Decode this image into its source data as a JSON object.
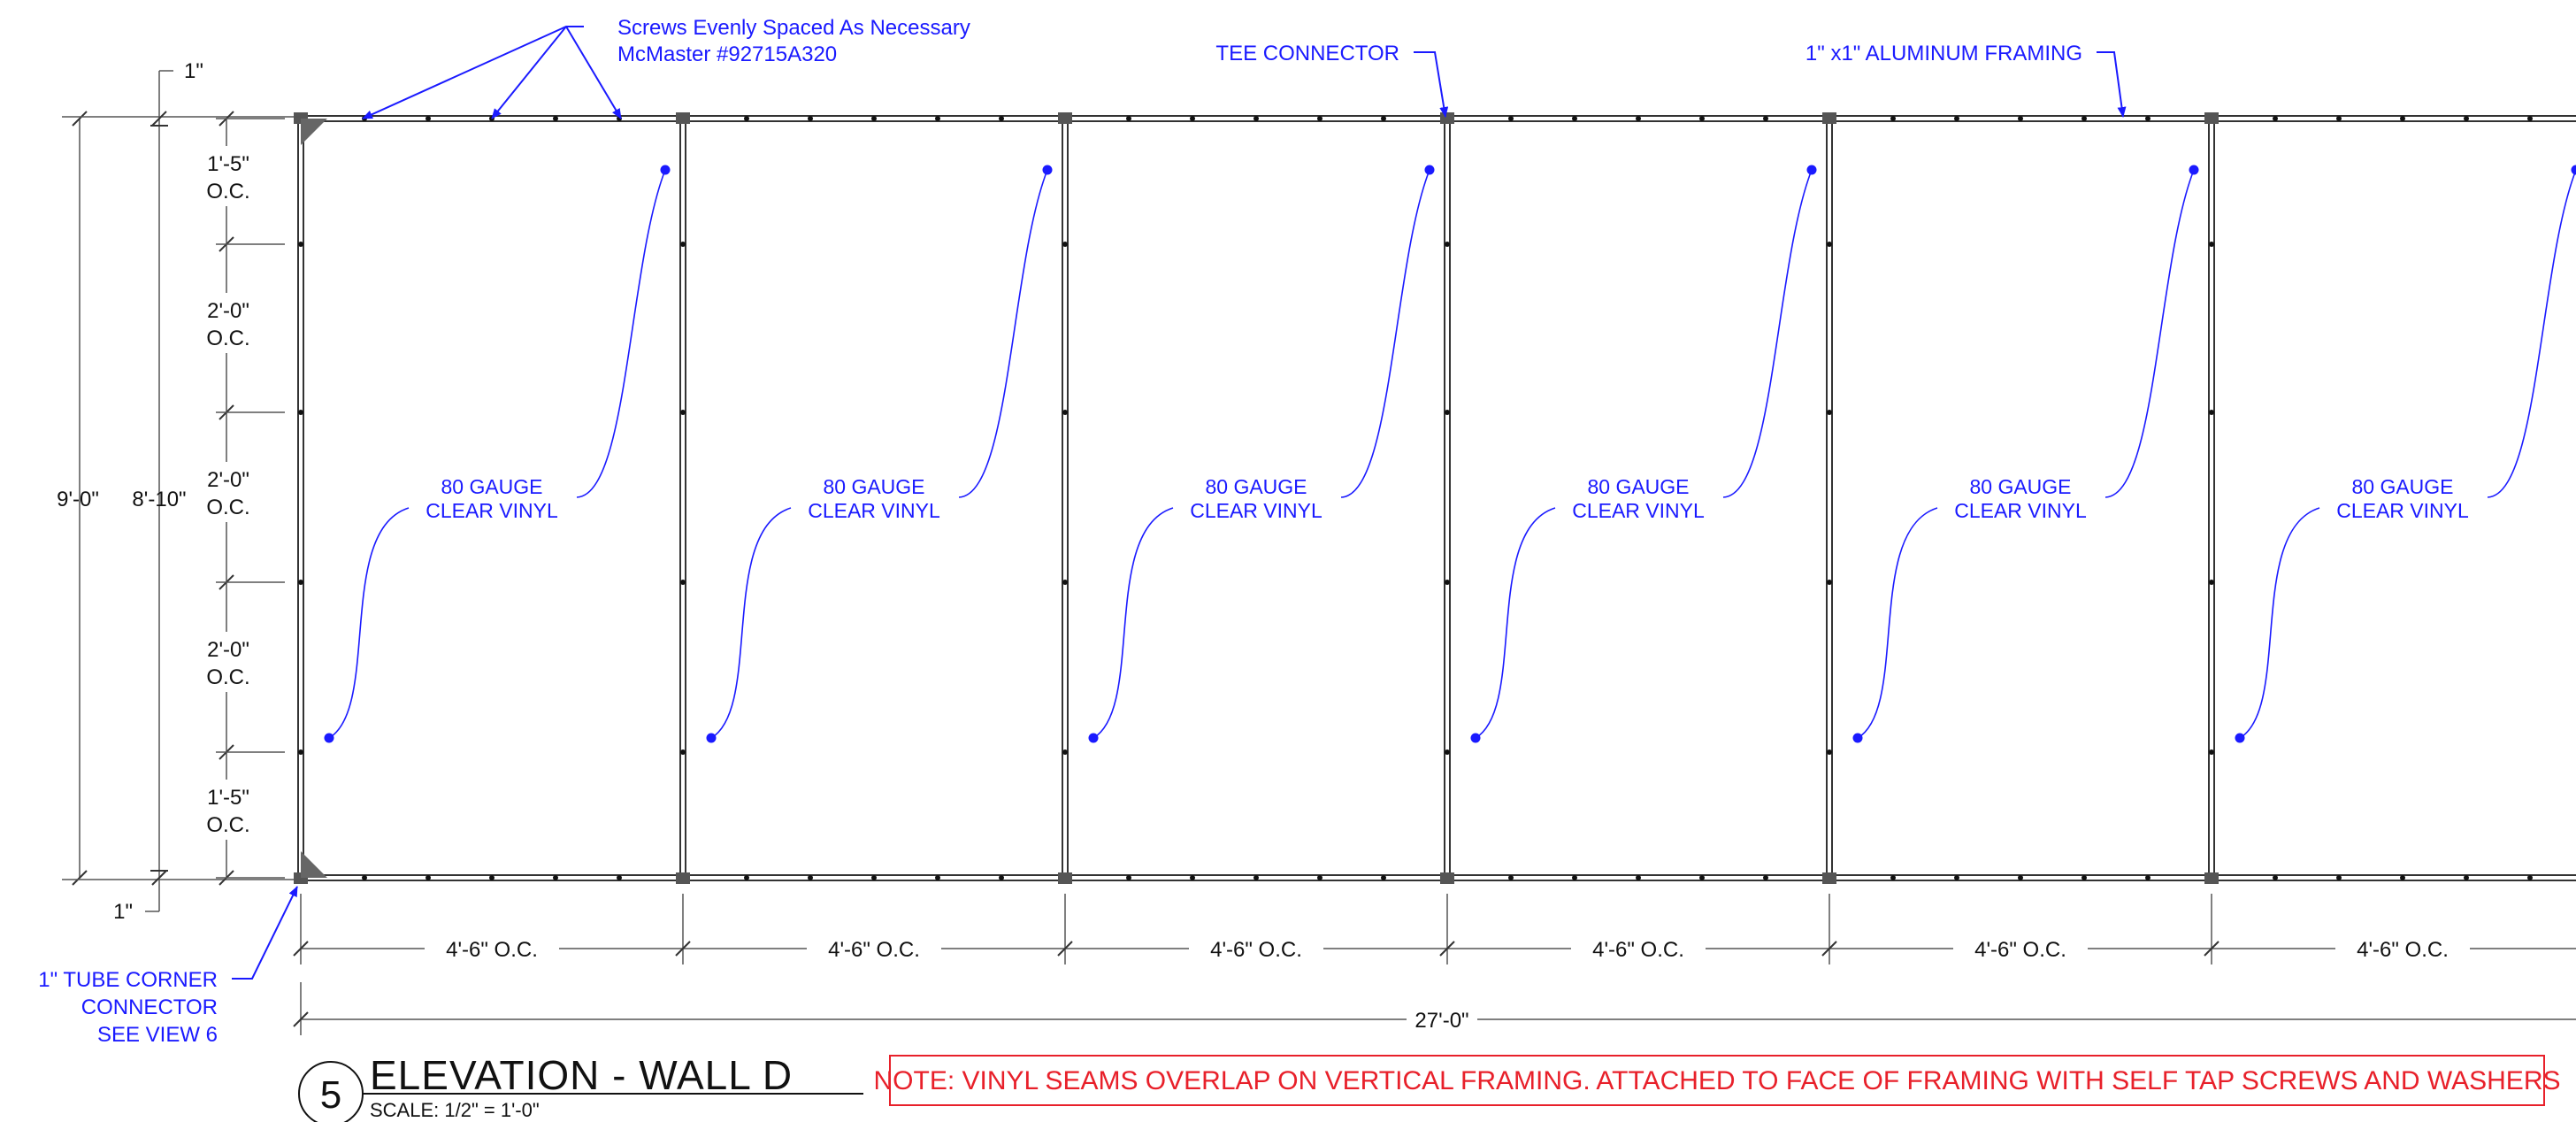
{
  "colors": {
    "annotation": "#1a1aff",
    "note": "#e8202a",
    "frame": "#333333",
    "dimension": "#555555"
  },
  "callouts": {
    "screws_line1": "Screws Evenly Spaced As Necessary",
    "screws_line2": "McMaster #92715A320",
    "tee": "TEE CONNECTOR",
    "framing": "1\" x1\" ALUMINUM FRAMING",
    "corner_line1": "1\" TUBE CORNER",
    "corner_line2": "CONNECTOR",
    "corner_line3": "SEE VIEW 6"
  },
  "vinyl_label_line1": "80 GAUGE",
  "vinyl_label_line2": "CLEAR VINYL",
  "panel_count": 6,
  "dimensions": {
    "overall_height": "9'-0\"",
    "frame_height": "8'-10\"",
    "top_offset": "1\"",
    "bottom_offset": "1\"",
    "spacings": [
      {
        "value": "1'-5\"",
        "sub": "O.C."
      },
      {
        "value": "2'-0\"",
        "sub": "O.C."
      },
      {
        "value": "2'-0\"",
        "sub": "O.C."
      },
      {
        "value": "2'-0\"",
        "sub": "O.C."
      },
      {
        "value": "1'-5\"",
        "sub": "O.C."
      }
    ],
    "panel_width": "4'-6\" O.C.",
    "overall_width": "27'-0\""
  },
  "title": {
    "number": "5",
    "name": "ELEVATION - WALL D",
    "scale": "SCALE: 1/2\" = 1'-0\""
  },
  "note": "NOTE: VINYL SEAMS OVERLAP ON VERTICAL FRAMING. ATTACHED TO FACE OF FRAMING WITH SELF TAP SCREWS AND WASHERS"
}
